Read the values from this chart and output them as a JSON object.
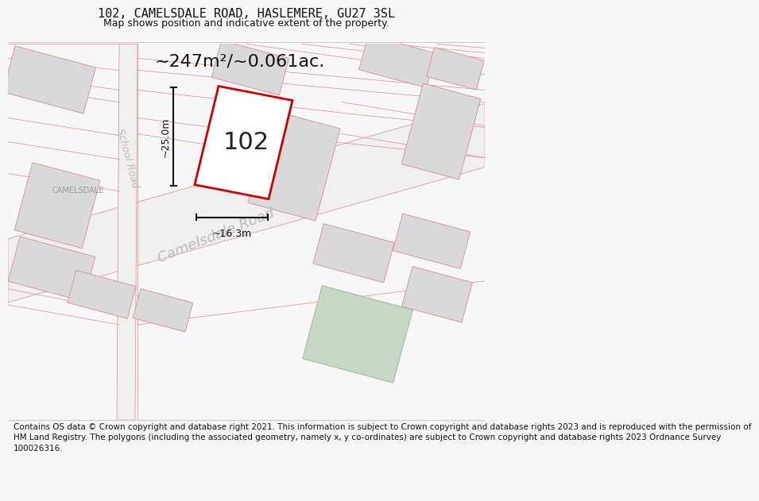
{
  "title_line1": "102, CAMELSDALE ROAD, HASLEMERE, GU27 3SL",
  "title_line2": "Map shows position and indicative extent of the property.",
  "area_text": "~247m²/~0.061ac.",
  "property_number": "102",
  "dim_vertical": "~25.0m",
  "dim_horizontal": "~16.3m",
  "road_label_large": "Camelsdale Road",
  "road_label_small": "School Road",
  "camelsdale_label": "CAMELSDALE",
  "footer_text": "Contains OS data © Crown copyright and database right 2021. This information is subject to Crown copyright and database rights 2023 and is reproduced with the permission of\nHM Land Registry. The polygons (including the associated geometry, namely x, y co-ordinates) are subject to Crown copyright and database rights 2023 Ordnance Survey\n100026316.",
  "bg_color": "#f7f7f7",
  "map_bg": "#ffffff",
  "building_fill": "#d9d9d9",
  "building_edge": "#e08888",
  "road_fill": "#efefef",
  "road_edge": "#e08888",
  "green_fill": "#c5d8c5",
  "green_edge": "#a0c0a0",
  "property_outline": "#cc0000",
  "dim_color": "#111111",
  "text_color": "#111111",
  "label_color": "#bbbbbb",
  "camelsdale_color": "#999999",
  "title_fontsize": 11,
  "subtitle_fontsize": 9,
  "footer_fontsize": 7.5,
  "area_fontsize": 16
}
